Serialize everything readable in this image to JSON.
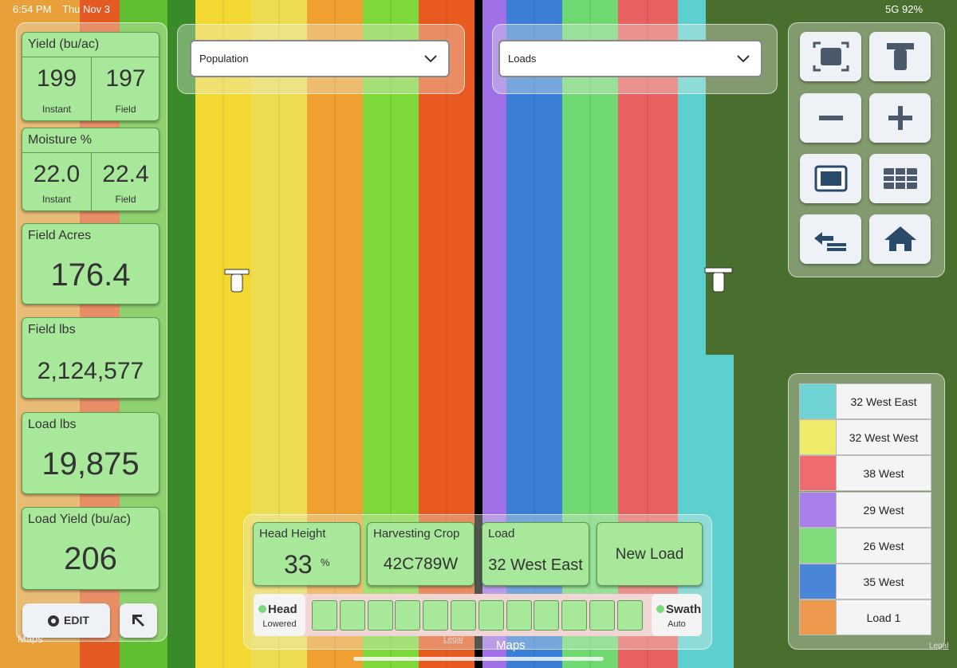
{
  "status_bar": {
    "time": "6:54 PM",
    "date": "Thu Nov 3",
    "network": "5G",
    "battery": "92%"
  },
  "stats": [
    {
      "title": "Yield (bu/ac)",
      "cells": [
        {
          "value": "199",
          "label": "Instant"
        },
        {
          "value": "197",
          "label": "Field"
        }
      ]
    },
    {
      "title": "Moisture %",
      "cells": [
        {
          "value": "22.0",
          "label": "Instant"
        },
        {
          "value": "22.4",
          "label": "Field"
        }
      ]
    },
    {
      "title": "Field Acres",
      "value": "176.4"
    },
    {
      "title": "Field lbs",
      "value": "2,124,577"
    },
    {
      "title": "Load lbs",
      "value": "19,875"
    },
    {
      "title": "Load Yield (bu/ac)",
      "value": "206"
    }
  ],
  "edit_button": "EDIT",
  "dropdowns": [
    "Population",
    "Loads"
  ],
  "status_tiles": [
    {
      "title": "Head Height",
      "value": "33",
      "unit": "%"
    },
    {
      "title": "Harvesting Crop",
      "value": "42C789W"
    },
    {
      "title": "Load",
      "value": "32 West East"
    }
  ],
  "new_load_button": "New Load",
  "head": {
    "label": "Head",
    "state": "Lowered"
  },
  "swath": {
    "label": "Swath",
    "state": "Auto"
  },
  "legend": [
    {
      "name": "32 West East",
      "color": "#6fd3d3"
    },
    {
      "name": "32 West West",
      "color": "#eeea6a"
    },
    {
      "name": "38 West",
      "color": "#ee6b6e"
    },
    {
      "name": "29 West",
      "color": "#a87ee8"
    },
    {
      "name": "26 West",
      "color": "#7edc7a"
    },
    {
      "name": "35 West",
      "color": "#4a86d8"
    },
    {
      "name": "Load 1",
      "color": "#ee9a4e"
    }
  ],
  "map_attribution": [
    "Maps",
    "Maps"
  ],
  "legal": [
    "Legal",
    "Legal"
  ]
}
